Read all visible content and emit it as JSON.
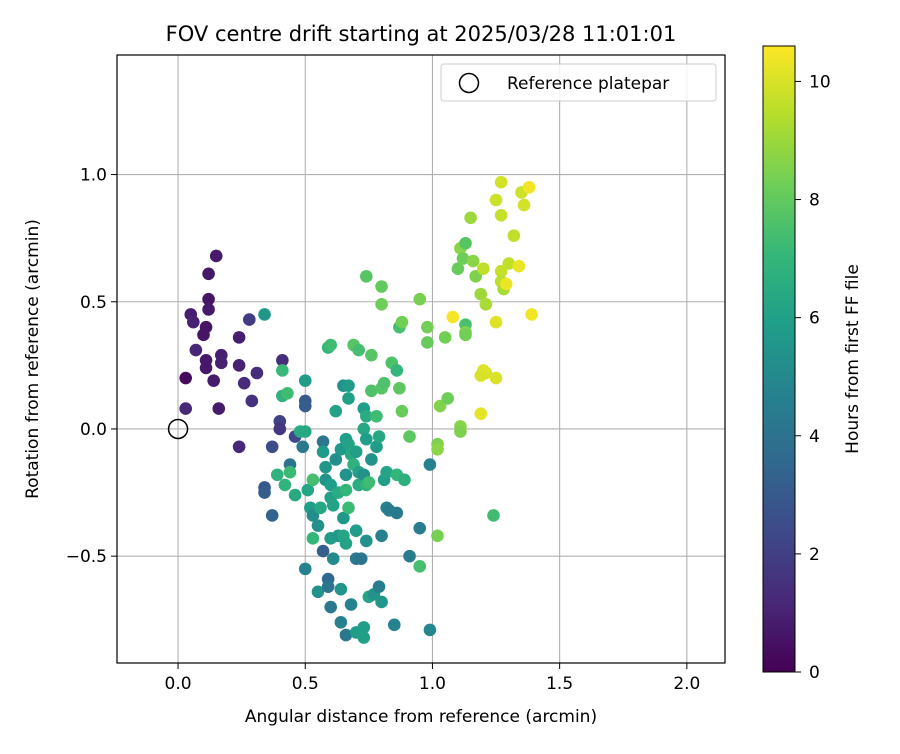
{
  "chart_data": {
    "type": "scatter",
    "title": "FOV centre drift starting at 2025/03/28 11:01:01",
    "xlabel": "Angular distance from reference (arcmin)",
    "ylabel": "Rotation from reference (arcmin)",
    "xlim": [
      -0.24,
      2.15
    ],
    "ylim": [
      -0.92,
      1.47
    ],
    "x_ticks": [
      0.0,
      0.5,
      1.0,
      1.5,
      2.0
    ],
    "x_tick_labels": [
      "0.0",
      "0.5",
      "1.0",
      "1.5",
      "2.0"
    ],
    "y_ticks": [
      -0.5,
      0.0,
      0.5,
      1.0
    ],
    "y_tick_labels": [
      "−0.5",
      "0.0",
      "0.5",
      "1.0"
    ],
    "grid": true,
    "legend": {
      "placement": "top-right",
      "entries": [
        {
          "label": "Reference platepar",
          "marker": "open-circle"
        }
      ]
    },
    "reference_point": {
      "x": 0.0,
      "y": 0.0
    },
    "colorbar": {
      "label": "Hours from first FF file",
      "colormap": "viridis",
      "range": [
        0,
        10.6
      ],
      "ticks": [
        0,
        2,
        4,
        6,
        8,
        10
      ],
      "tick_labels": [
        "0",
        "2",
        "4",
        "6",
        "8",
        "10"
      ]
    },
    "points": [
      {
        "x": 0.15,
        "y": 0.68,
        "c": 0.8
      },
      {
        "x": 0.12,
        "y": 0.61,
        "c": 0.7
      },
      {
        "x": 0.12,
        "y": 0.51,
        "c": 0.6
      },
      {
        "x": 0.12,
        "y": 0.47,
        "c": 0.7
      },
      {
        "x": 0.05,
        "y": 0.45,
        "c": 0.9
      },
      {
        "x": 0.06,
        "y": 0.42,
        "c": 1.0
      },
      {
        "x": 0.11,
        "y": 0.4,
        "c": 0.6
      },
      {
        "x": 0.1,
        "y": 0.37,
        "c": 0.6
      },
      {
        "x": 0.07,
        "y": 0.31,
        "c": 1.1
      },
      {
        "x": 0.17,
        "y": 0.29,
        "c": 0.9
      },
      {
        "x": 0.17,
        "y": 0.26,
        "c": 1.0
      },
      {
        "x": 0.11,
        "y": 0.27,
        "c": 0.7
      },
      {
        "x": 0.11,
        "y": 0.24,
        "c": 0.7
      },
      {
        "x": 0.14,
        "y": 0.19,
        "c": 0.8
      },
      {
        "x": 0.03,
        "y": 0.2,
        "c": 0.3
      },
      {
        "x": 0.03,
        "y": 0.08,
        "c": 1.2
      },
      {
        "x": 0.16,
        "y": 0.08,
        "c": 0.8
      },
      {
        "x": 0.24,
        "y": 0.36,
        "c": 0.9
      },
      {
        "x": 0.28,
        "y": 0.43,
        "c": 1.9
      },
      {
        "x": 0.24,
        "y": 0.25,
        "c": 1.0
      },
      {
        "x": 0.26,
        "y": 0.18,
        "c": 1.3
      },
      {
        "x": 0.31,
        "y": 0.22,
        "c": 1.4
      },
      {
        "x": 0.29,
        "y": 0.11,
        "c": 1.5
      },
      {
        "x": 0.24,
        "y": -0.07,
        "c": 1.2
      },
      {
        "x": 0.41,
        "y": 0.27,
        "c": 1.4
      },
      {
        "x": 0.34,
        "y": 0.45,
        "c": 5.6
      },
      {
        "x": 0.4,
        "y": 0.03,
        "c": 2.1
      },
      {
        "x": 0.4,
        "y": 0.0,
        "c": 1.7
      },
      {
        "x": 0.37,
        "y": -0.07,
        "c": 2.5
      },
      {
        "x": 0.34,
        "y": -0.23,
        "c": 3.0
      },
      {
        "x": 0.34,
        "y": -0.25,
        "c": 3.1
      },
      {
        "x": 0.37,
        "y": -0.34,
        "c": 3.4
      },
      {
        "x": 0.41,
        "y": 0.23,
        "c": 7.1
      },
      {
        "x": 0.41,
        "y": 0.13,
        "c": 6.8
      },
      {
        "x": 0.43,
        "y": 0.14,
        "c": 7.3
      },
      {
        "x": 0.5,
        "y": 0.19,
        "c": 5.8
      },
      {
        "x": 0.5,
        "y": 0.11,
        "c": 3.0
      },
      {
        "x": 0.5,
        "y": 0.09,
        "c": 3.1
      },
      {
        "x": 0.46,
        "y": -0.03,
        "c": 2.3
      },
      {
        "x": 0.48,
        "y": -0.01,
        "c": 6.5
      },
      {
        "x": 0.5,
        "y": -0.01,
        "c": 6.3
      },
      {
        "x": 0.49,
        "y": -0.07,
        "c": 4.2
      },
      {
        "x": 0.44,
        "y": -0.14,
        "c": 4.0
      },
      {
        "x": 0.39,
        "y": -0.18,
        "c": 6.8
      },
      {
        "x": 0.44,
        "y": -0.17,
        "c": 7.2
      },
      {
        "x": 0.42,
        "y": -0.22,
        "c": 6.9
      },
      {
        "x": 0.46,
        "y": -0.26,
        "c": 6.4
      },
      {
        "x": 0.51,
        "y": -0.24,
        "c": 6.2
      },
      {
        "x": 0.53,
        "y": -0.2,
        "c": 7.4
      },
      {
        "x": 0.52,
        "y": -0.31,
        "c": 5.9
      },
      {
        "x": 0.53,
        "y": -0.34,
        "c": 5.2
      },
      {
        "x": 0.5,
        "y": -0.55,
        "c": 4.7
      },
      {
        "x": 0.53,
        "y": -0.43,
        "c": 7.0
      },
      {
        "x": 0.55,
        "y": -0.38,
        "c": 5.3
      },
      {
        "x": 0.56,
        "y": -0.31,
        "c": 6.3
      },
      {
        "x": 0.55,
        "y": -0.64,
        "c": 5.4
      },
      {
        "x": 0.57,
        "y": -0.48,
        "c": 3.2
      },
      {
        "x": 0.59,
        "y": -0.59,
        "c": 3.6
      },
      {
        "x": 0.59,
        "y": -0.62,
        "c": 4.1
      },
      {
        "x": 0.6,
        "y": -0.7,
        "c": 4.3
      },
      {
        "x": 0.64,
        "y": -0.63,
        "c": 5.5
      },
      {
        "x": 0.64,
        "y": -0.76,
        "c": 4.6
      },
      {
        "x": 0.66,
        "y": -0.81,
        "c": 4.1
      },
      {
        "x": 0.68,
        "y": -0.69,
        "c": 4.7
      },
      {
        "x": 0.7,
        "y": -0.8,
        "c": 5.8
      },
      {
        "x": 0.73,
        "y": -0.78,
        "c": 5.9
      },
      {
        "x": 0.73,
        "y": -0.82,
        "c": 6.0
      },
      {
        "x": 0.75,
        "y": -0.66,
        "c": 6.2
      },
      {
        "x": 0.77,
        "y": -0.65,
        "c": 5.4
      },
      {
        "x": 0.8,
        "y": -0.68,
        "c": 5.6
      },
      {
        "x": 0.85,
        "y": -0.77,
        "c": 4.7
      },
      {
        "x": 0.99,
        "y": -0.79,
        "c": 4.9
      },
      {
        "x": 0.6,
        "y": -0.43,
        "c": 5.8
      },
      {
        "x": 0.61,
        "y": -0.51,
        "c": 5.1
      },
      {
        "x": 0.63,
        "y": -0.42,
        "c": 5.6
      },
      {
        "x": 0.65,
        "y": -0.42,
        "c": 6.2
      },
      {
        "x": 0.65,
        "y": -0.35,
        "c": 5.6
      },
      {
        "x": 0.66,
        "y": -0.45,
        "c": 6.1
      },
      {
        "x": 0.7,
        "y": -0.4,
        "c": 5.8
      },
      {
        "x": 0.7,
        "y": -0.51,
        "c": 4.3
      },
      {
        "x": 0.72,
        "y": -0.51,
        "c": 4.1
      },
      {
        "x": 0.74,
        "y": -0.44,
        "c": 5.4
      },
      {
        "x": 0.79,
        "y": -0.62,
        "c": 4.5
      },
      {
        "x": 0.8,
        "y": -0.42,
        "c": 4.6
      },
      {
        "x": 0.82,
        "y": -0.31,
        "c": 4.7
      },
      {
        "x": 0.83,
        "y": -0.32,
        "c": 4.4
      },
      {
        "x": 0.86,
        "y": -0.33,
        "c": 4.3
      },
      {
        "x": 0.91,
        "y": -0.5,
        "c": 4.4
      },
      {
        "x": 0.95,
        "y": -0.39,
        "c": 4.5
      },
      {
        "x": 0.95,
        "y": -0.54,
        "c": 7.4
      },
      {
        "x": 0.57,
        "y": -0.05,
        "c": 4.2
      },
      {
        "x": 0.57,
        "y": -0.09,
        "c": 5.7
      },
      {
        "x": 0.58,
        "y": -0.15,
        "c": 5.6
      },
      {
        "x": 0.58,
        "y": -0.2,
        "c": 5.4
      },
      {
        "x": 0.6,
        "y": -0.22,
        "c": 5.9
      },
      {
        "x": 0.6,
        "y": -0.27,
        "c": 6.0
      },
      {
        "x": 0.61,
        "y": -0.3,
        "c": 6.1
      },
      {
        "x": 0.63,
        "y": -0.25,
        "c": 6.5
      },
      {
        "x": 0.62,
        "y": -0.12,
        "c": 5.2
      },
      {
        "x": 0.64,
        "y": -0.08,
        "c": 5.7
      },
      {
        "x": 0.66,
        "y": -0.18,
        "c": 5.4
      },
      {
        "x": 0.66,
        "y": -0.04,
        "c": 5.9
      },
      {
        "x": 0.67,
        "y": -0.06,
        "c": 6.1
      },
      {
        "x": 0.68,
        "y": -0.1,
        "c": 6.4
      },
      {
        "x": 0.69,
        "y": -0.14,
        "c": 6.8
      },
      {
        "x": 0.7,
        "y": -0.09,
        "c": 6.0
      },
      {
        "x": 0.71,
        "y": -0.17,
        "c": 6.1
      },
      {
        "x": 0.71,
        "y": -0.22,
        "c": 6.5
      },
      {
        "x": 0.73,
        "y": -0.18,
        "c": 5.3
      },
      {
        "x": 0.74,
        "y": -0.22,
        "c": 6.8
      },
      {
        "x": 0.75,
        "y": -0.21,
        "c": 7.3
      },
      {
        "x": 0.76,
        "y": -0.12,
        "c": 5.4
      },
      {
        "x": 0.78,
        "y": -0.07,
        "c": 5.8
      },
      {
        "x": 0.79,
        "y": -0.03,
        "c": 6.3
      },
      {
        "x": 0.81,
        "y": -0.2,
        "c": 6.0
      },
      {
        "x": 0.82,
        "y": -0.17,
        "c": 6.2
      },
      {
        "x": 0.86,
        "y": -0.18,
        "c": 7.0
      },
      {
        "x": 0.89,
        "y": -0.2,
        "c": 6.7
      },
      {
        "x": 0.66,
        "y": -0.24,
        "c": 7.0
      },
      {
        "x": 0.67,
        "y": -0.31,
        "c": 7.2
      },
      {
        "x": 0.59,
        "y": 0.32,
        "c": 7.0
      },
      {
        "x": 0.6,
        "y": 0.33,
        "c": 7.3
      },
      {
        "x": 0.65,
        "y": 0.17,
        "c": 5.4
      },
      {
        "x": 0.67,
        "y": 0.17,
        "c": 5.8
      },
      {
        "x": 0.67,
        "y": 0.12,
        "c": 6.0
      },
      {
        "x": 0.62,
        "y": 0.07,
        "c": 6.1
      },
      {
        "x": 0.69,
        "y": 0.33,
        "c": 7.8
      },
      {
        "x": 0.71,
        "y": 0.31,
        "c": 7.4
      },
      {
        "x": 0.73,
        "y": 0.08,
        "c": 5.9
      },
      {
        "x": 0.74,
        "y": 0.05,
        "c": 6.5
      },
      {
        "x": 0.73,
        "y": 0.0,
        "c": 6.3
      },
      {
        "x": 0.74,
        "y": -0.04,
        "c": 5.9
      },
      {
        "x": 0.76,
        "y": 0.15,
        "c": 7.6
      },
      {
        "x": 0.76,
        "y": 0.29,
        "c": 7.8
      },
      {
        "x": 0.78,
        "y": 0.05,
        "c": 7.3
      },
      {
        "x": 0.8,
        "y": 0.16,
        "c": 7.8
      },
      {
        "x": 0.81,
        "y": 0.18,
        "c": 7.6
      },
      {
        "x": 0.84,
        "y": 0.26,
        "c": 7.6
      },
      {
        "x": 0.86,
        "y": 0.23,
        "c": 7.0
      },
      {
        "x": 0.87,
        "y": 0.16,
        "c": 7.9
      },
      {
        "x": 0.88,
        "y": 0.07,
        "c": 8.1
      },
      {
        "x": 0.91,
        "y": -0.03,
        "c": 7.9
      },
      {
        "x": 0.74,
        "y": 0.6,
        "c": 7.8
      },
      {
        "x": 0.8,
        "y": 0.56,
        "c": 8.0
      },
      {
        "x": 0.8,
        "y": 0.49,
        "c": 8.2
      },
      {
        "x": 0.87,
        "y": 0.4,
        "c": 7.4
      },
      {
        "x": 0.88,
        "y": 0.42,
        "c": 8.3
      },
      {
        "x": 0.95,
        "y": 0.51,
        "c": 8.4
      },
      {
        "x": 0.98,
        "y": 0.4,
        "c": 8.3
      },
      {
        "x": 0.98,
        "y": 0.34,
        "c": 8.1
      },
      {
        "x": 1.05,
        "y": 0.36,
        "c": 8.3
      },
      {
        "x": 1.02,
        "y": -0.06,
        "c": 8.5
      },
      {
        "x": 1.02,
        "y": -0.08,
        "c": 8.7
      },
      {
        "x": 1.02,
        "y": -0.42,
        "c": 8.4
      },
      {
        "x": 1.03,
        "y": 0.09,
        "c": 8.6
      },
      {
        "x": 1.06,
        "y": 0.12,
        "c": 8.2
      },
      {
        "x": 1.11,
        "y": 0.01,
        "c": 8.7
      },
      {
        "x": 1.11,
        "y": -0.01,
        "c": 8.5
      },
      {
        "x": 0.99,
        "y": -0.14,
        "c": 4.6
      },
      {
        "x": 1.24,
        "y": -0.34,
        "c": 7.3
      },
      {
        "x": 1.1,
        "y": 0.63,
        "c": 8.1
      },
      {
        "x": 1.11,
        "y": 0.71,
        "c": 8.7
      },
      {
        "x": 1.13,
        "y": 0.73,
        "c": 7.8
      },
      {
        "x": 1.12,
        "y": 0.67,
        "c": 8.2
      },
      {
        "x": 1.13,
        "y": 0.41,
        "c": 7.5
      },
      {
        "x": 1.13,
        "y": 0.38,
        "c": 8.6
      },
      {
        "x": 1.13,
        "y": 0.37,
        "c": 8.3
      },
      {
        "x": 1.15,
        "y": 0.83,
        "c": 9.0
      },
      {
        "x": 1.16,
        "y": 0.66,
        "c": 8.7
      },
      {
        "x": 1.17,
        "y": 0.6,
        "c": 8.5
      },
      {
        "x": 1.19,
        "y": 0.53,
        "c": 9.0
      },
      {
        "x": 1.2,
        "y": 0.63,
        "c": 9.6
      },
      {
        "x": 1.21,
        "y": 0.49,
        "c": 9.2
      },
      {
        "x": 1.21,
        "y": 0.22,
        "c": 10.0
      },
      {
        "x": 1.2,
        "y": 0.23,
        "c": 10.1
      },
      {
        "x": 1.19,
        "y": 0.21,
        "c": 10.0
      },
      {
        "x": 1.19,
        "y": 0.06,
        "c": 10.2
      },
      {
        "x": 1.08,
        "y": 0.44,
        "c": 10.5
      },
      {
        "x": 1.25,
        "y": 0.2,
        "c": 10.0
      },
      {
        "x": 1.25,
        "y": 0.42,
        "c": 10.1
      },
      {
        "x": 1.25,
        "y": 0.9,
        "c": 9.8
      },
      {
        "x": 1.27,
        "y": 0.97,
        "c": 9.9
      },
      {
        "x": 1.27,
        "y": 0.84,
        "c": 9.7
      },
      {
        "x": 1.27,
        "y": 0.62,
        "c": 9.7
      },
      {
        "x": 1.27,
        "y": 0.58,
        "c": 9.5
      },
      {
        "x": 1.28,
        "y": 0.55,
        "c": 9.2
      },
      {
        "x": 1.29,
        "y": 0.57,
        "c": 10.3
      },
      {
        "x": 1.3,
        "y": 0.65,
        "c": 9.6
      },
      {
        "x": 1.32,
        "y": 0.76,
        "c": 9.6
      },
      {
        "x": 1.34,
        "y": 0.64,
        "c": 10.3
      },
      {
        "x": 1.35,
        "y": 0.93,
        "c": 9.8
      },
      {
        "x": 1.36,
        "y": 0.88,
        "c": 9.9
      },
      {
        "x": 1.38,
        "y": 0.95,
        "c": 10.4
      },
      {
        "x": 1.39,
        "y": 0.45,
        "c": 10.4
      }
    ]
  }
}
